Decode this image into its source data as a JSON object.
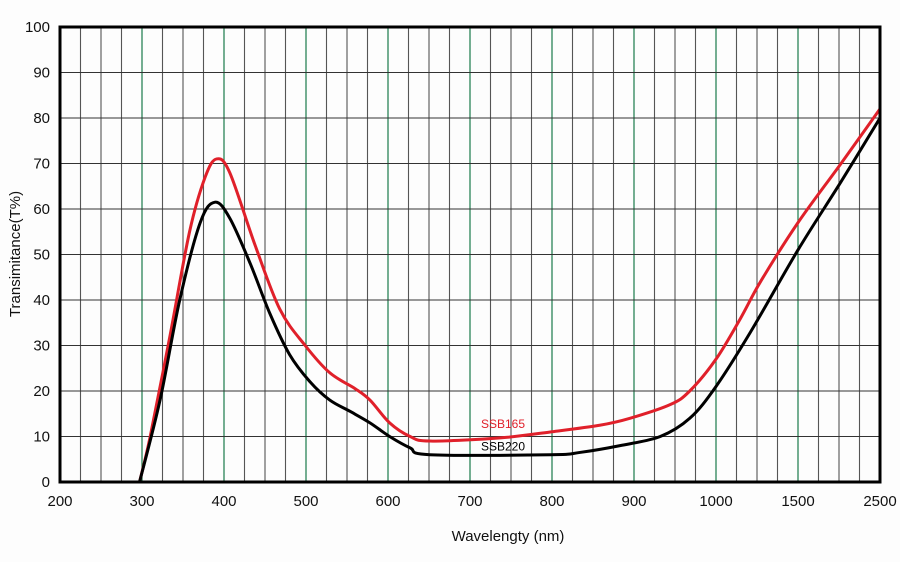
{
  "chart_data": {
    "type": "line",
    "title": "",
    "xlabel": "Wavelengty (nm)",
    "ylabel": "Transimitance(T%)",
    "x_ticks": [
      200,
      300,
      400,
      500,
      600,
      700,
      800,
      900,
      1000,
      1500,
      2500
    ],
    "x_tick_labels": [
      "200",
      "300",
      "400",
      "500",
      "600",
      "700",
      "800",
      "900",
      "1000",
      "1500",
      "2500"
    ],
    "y_ticks": [
      0,
      10,
      20,
      30,
      40,
      50,
      60,
      70,
      80,
      90,
      100
    ],
    "y_tick_labels": [
      "0",
      "10",
      "20",
      "30",
      "40",
      "50",
      "60",
      "70",
      "80",
      "90",
      "100"
    ],
    "ylim": [
      0,
      100
    ],
    "xlim": [
      200,
      2500
    ],
    "x_scale": "piecewise-linear between tick labels",
    "grid": true,
    "colors": {
      "grid_minor": "#555555",
      "grid_major": "#1a7a4a",
      "frame": "#000000"
    },
    "series": [
      {
        "name": "SSB165",
        "color": "#e0202a",
        "x": [
          297,
          310,
          334,
          358,
          377,
          391,
          407,
          438,
          468,
          499,
          529,
          560,
          578,
          602,
          627,
          651,
          737,
          798,
          859,
          895,
          944,
          968,
          1000,
          1150,
          1271,
          1500,
          2025,
          2500
        ],
        "y": [
          0,
          10,
          32,
          55,
          67,
          71,
          68,
          52,
          38,
          30,
          24,
          20.5,
          18,
          13,
          10,
          9,
          9.7,
          11,
          12.5,
          14,
          17,
          20,
          27,
          36,
          44,
          57,
          70,
          82
        ]
      },
      {
        "name": "SSB220",
        "color": "#000000",
        "x": [
          297,
          322,
          346,
          371,
          389,
          407,
          432,
          456,
          480,
          505,
          529,
          554,
          578,
          602,
          627,
          651,
          798,
          834,
          883,
          932,
          968,
          1000,
          1211,
          1500,
          2025,
          2500
        ],
        "y": [
          0,
          18,
          40,
          57,
          61.5,
          58,
          48,
          37,
          28,
          22,
          18,
          15.5,
          13,
          10,
          7.5,
          6,
          6,
          6.5,
          8,
          10,
          14,
          21,
          33,
          51,
          66,
          80
        ]
      }
    ],
    "annotations": [
      {
        "text": "SSB165",
        "series": "SSB165",
        "x": 750,
        "y": 11
      },
      {
        "text": "SSB220",
        "series": "SSB220",
        "x": 750,
        "y": 6
      }
    ]
  }
}
